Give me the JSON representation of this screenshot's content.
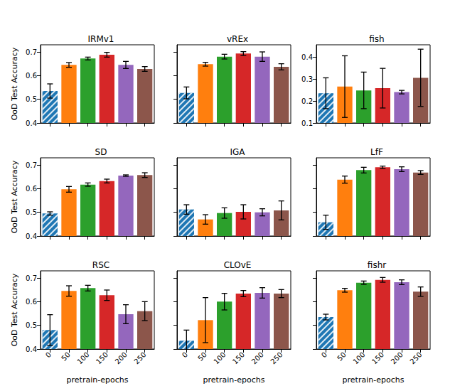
{
  "chart_data": [
    {
      "type": "bar",
      "title": "IRMv1",
      "y_label": "OoD Test Accuracy",
      "categories": [
        "0",
        "50",
        "100",
        "150",
        "200",
        "250"
      ],
      "values": [
        0.535,
        0.645,
        0.672,
        0.688,
        0.645,
        0.628
      ],
      "errors": [
        0.03,
        0.01,
        0.006,
        0.01,
        0.015,
        0.01
      ],
      "colors": [
        "#1f77b4",
        "#ff7f0e",
        "#2ca02c",
        "#d62728",
        "#9467bd",
        "#8c564b"
      ],
      "ylim": [
        0.4,
        0.73
      ],
      "yticks": [
        0.4,
        0.5,
        0.6,
        0.7
      ],
      "tick_labels": "y"
    },
    {
      "type": "bar",
      "title": "vREx",
      "categories": [
        "0",
        "50",
        "100",
        "150",
        "200",
        "250"
      ],
      "values": [
        0.527,
        0.648,
        0.68,
        0.693,
        0.68,
        0.637
      ],
      "errors": [
        0.025,
        0.008,
        0.01,
        0.008,
        0.02,
        0.013
      ],
      "colors": [
        "#1f77b4",
        "#ff7f0e",
        "#2ca02c",
        "#d62728",
        "#9467bd",
        "#8c564b"
      ],
      "ylim": [
        0.4,
        0.73
      ],
      "yticks": [
        0.4,
        0.5,
        0.6,
        0.7
      ],
      "tick_labels": false
    },
    {
      "type": "bar",
      "title": "fish",
      "categories": [
        "0",
        "50",
        "100",
        "150",
        "200",
        "250"
      ],
      "values": [
        0.235,
        0.265,
        0.248,
        0.258,
        0.24,
        0.305
      ],
      "errors": [
        0.07,
        0.14,
        0.083,
        0.09,
        0.008,
        0.13
      ],
      "colors": [
        "#1f77b4",
        "#ff7f0e",
        "#2ca02c",
        "#d62728",
        "#9467bd",
        "#8c564b"
      ],
      "ylim": [
        0.1,
        0.455
      ],
      "yticks": [
        0.1,
        0.2,
        0.3,
        0.4
      ],
      "tick_labels": "y"
    },
    {
      "type": "bar",
      "title": "SD",
      "y_label": "OoD Test Accuracy",
      "categories": [
        "0",
        "50",
        "100",
        "150",
        "200",
        "250"
      ],
      "values": [
        0.495,
        0.597,
        0.617,
        0.632,
        0.655,
        0.657
      ],
      "errors": [
        0.007,
        0.012,
        0.007,
        0.008,
        0.003,
        0.01
      ],
      "colors": [
        "#1f77b4",
        "#ff7f0e",
        "#2ca02c",
        "#d62728",
        "#9467bd",
        "#8c564b"
      ],
      "ylim": [
        0.4,
        0.73
      ],
      "yticks": [
        0.4,
        0.5,
        0.6,
        0.7
      ],
      "tick_labels": "y"
    },
    {
      "type": "bar",
      "title": "IGA",
      "categories": [
        "0",
        "50",
        "100",
        "150",
        "200",
        "250"
      ],
      "values": [
        0.512,
        0.47,
        0.497,
        0.502,
        0.5,
        0.508
      ],
      "errors": [
        0.02,
        0.02,
        0.022,
        0.03,
        0.015,
        0.04
      ],
      "colors": [
        "#1f77b4",
        "#ff7f0e",
        "#2ca02c",
        "#d62728",
        "#9467bd",
        "#8c564b"
      ],
      "ylim": [
        0.4,
        0.73
      ],
      "yticks": [
        0.4,
        0.5,
        0.6,
        0.7
      ],
      "tick_labels": false
    },
    {
      "type": "bar",
      "title": "LfF",
      "categories": [
        "0",
        "50",
        "100",
        "150",
        "200",
        "250"
      ],
      "values": [
        0.458,
        0.638,
        0.678,
        0.69,
        0.682,
        0.668
      ],
      "errors": [
        0.03,
        0.015,
        0.012,
        0.005,
        0.01,
        0.008
      ],
      "colors": [
        "#1f77b4",
        "#ff7f0e",
        "#2ca02c",
        "#d62728",
        "#9467bd",
        "#8c564b"
      ],
      "ylim": [
        0.4,
        0.73
      ],
      "yticks": [
        0.4,
        0.5,
        0.6,
        0.7
      ],
      "tick_labels": false
    },
    {
      "type": "bar",
      "title": "RSC",
      "y_label": "OoD Test Accuracy",
      "x_label": "pretrain-epochs",
      "categories": [
        "0",
        "50",
        "100",
        "150",
        "200",
        "250"
      ],
      "values": [
        0.48,
        0.645,
        0.657,
        0.627,
        0.547,
        0.56
      ],
      "errors": [
        0.065,
        0.022,
        0.012,
        0.022,
        0.04,
        0.04
      ],
      "colors": [
        "#1f77b4",
        "#ff7f0e",
        "#2ca02c",
        "#d62728",
        "#9467bd",
        "#8c564b"
      ],
      "ylim": [
        0.4,
        0.73
      ],
      "yticks": [
        0.4,
        0.5,
        0.6,
        0.7
      ]
    },
    {
      "type": "bar",
      "title": "CLOvE",
      "x_label": "pretrain-epochs",
      "categories": [
        "0",
        "50",
        "100",
        "150",
        "200",
        "250"
      ],
      "values": [
        0.435,
        0.522,
        0.6,
        0.634,
        0.637,
        0.634
      ],
      "errors": [
        0.045,
        0.095,
        0.035,
        0.013,
        0.022,
        0.017
      ],
      "colors": [
        "#1f77b4",
        "#ff7f0e",
        "#2ca02c",
        "#d62728",
        "#9467bd",
        "#8c564b"
      ],
      "ylim": [
        0.4,
        0.73
      ],
      "yticks": [
        0.4,
        0.5,
        0.6,
        0.7
      ],
      "tick_labels": "x"
    },
    {
      "type": "bar",
      "title": "fishr",
      "x_label": "pretrain-epochs",
      "categories": [
        "0",
        "50",
        "100",
        "150",
        "200",
        "250"
      ],
      "values": [
        0.535,
        0.648,
        0.68,
        0.692,
        0.682,
        0.642
      ],
      "errors": [
        0.012,
        0.008,
        0.007,
        0.01,
        0.01,
        0.02
      ],
      "colors": [
        "#1f77b4",
        "#ff7f0e",
        "#2ca02c",
        "#d62728",
        "#9467bd",
        "#8c564b"
      ],
      "ylim": [
        0.4,
        0.73
      ],
      "yticks": [
        0.4,
        0.5,
        0.6,
        0.7
      ],
      "tick_labels": "x"
    }
  ]
}
